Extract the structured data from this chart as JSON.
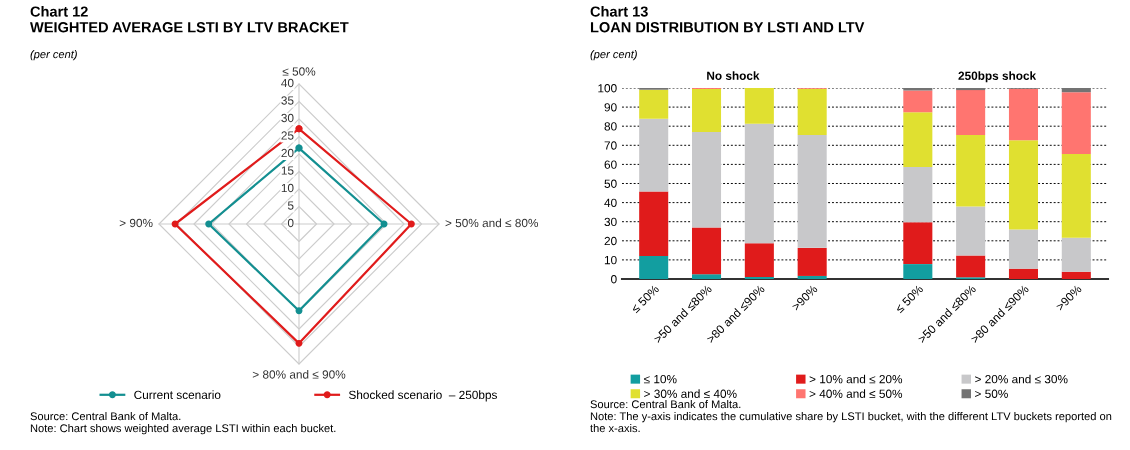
{
  "chart_data": [
    {
      "type": "radar",
      "title": "Chart 12\nWEIGHTED AVERAGE LSTI BY LTV BRACKET",
      "subtitle": "(per cent)",
      "categories": [
        "≤ 50%",
        "> 50% and ≤ 80%",
        "> 80% and ≤ 90%",
        "> 90%"
      ],
      "series": [
        {
          "name": "Current scenario",
          "color": "#138f91",
          "values": [
            21.7,
            24.3,
            24.8,
            25.8
          ]
        },
        {
          "name": "Shocked scenario  – 250bps",
          "color": "#e01b1b",
          "values": [
            27.2,
            32.1,
            34.1,
            35.4
          ]
        }
      ],
      "ylim": [
        0,
        40
      ],
      "yticks": [
        0,
        5,
        10,
        15,
        20,
        25,
        30,
        35,
        40
      ],
      "marker": "circle",
      "legend": "bottom",
      "grid": true,
      "annotations": [
        "Source: Central Bank of Malta.",
        "Note: Chart shows weighted average LSTI within each bucket."
      ]
    },
    {
      "type": "bar",
      "stacked": true,
      "title": "Chart 13\nLOAN DISTRIBUTION BY LSTI AND LTV",
      "subtitle": "(per cent)",
      "categories": [
        "≤ 50%",
        ">50 and ≤80%",
        ">80 and ≤90%",
        ">90%",
        null,
        "≤ 50%",
        ">50 and ≤80%",
        ">80 and ≤90%",
        ">90%"
      ],
      "series": [
        {
          "name": "≤ 10%",
          "color": "#129ea0",
          "values": [
            12.1,
            2.5,
            1.1,
            1.6,
            null,
            7.8,
            0.9,
            0,
            0
          ]
        },
        {
          "name": "> 10% and ≤ 20%",
          "color": "#e01b1b",
          "values": [
            33.7,
            24.5,
            17.6,
            14.7,
            null,
            21.9,
            11.4,
            5.4,
            3.8
          ]
        },
        {
          "name": "> 20% and ≤ 30%",
          "color": "#c8c8ca",
          "values": [
            38.1,
            50,
            62.6,
            59.1,
            null,
            29,
            25.6,
            20.5,
            17.8
          ]
        },
        {
          "name": "> 30% and ≤ 40%",
          "color": "#e0e030",
          "values": [
            15.2,
            22.5,
            18.7,
            24.2,
            null,
            28.6,
            37.5,
            46.7,
            43.8
          ]
        },
        {
          "name": "> 40% and ≤ 50%",
          "color": "#ff7570",
          "values": [
            0,
            0.5,
            0,
            0.4,
            null,
            11.4,
            23.5,
            27,
            32.4
          ]
        },
        {
          "name": "> 50%",
          "color": "#737373",
          "values": [
            0.9,
            0,
            0,
            0,
            null,
            1.3,
            1.1,
            0.4,
            2.2
          ]
        }
      ],
      "ylim": [
        0,
        100
      ],
      "yticks": [
        0,
        10,
        20,
        30,
        40,
        50,
        60,
        70,
        80,
        90,
        100
      ],
      "grid": "y",
      "legend": "bottom",
      "annotations": [
        "No shock",
        "250bps shock",
        "Source: Central Bank of Malta.",
        "Note: The y-axis indicates the cumulative share by LSTI bucket, with the different LTV buckets reported on the x-axis."
      ]
    }
  ]
}
